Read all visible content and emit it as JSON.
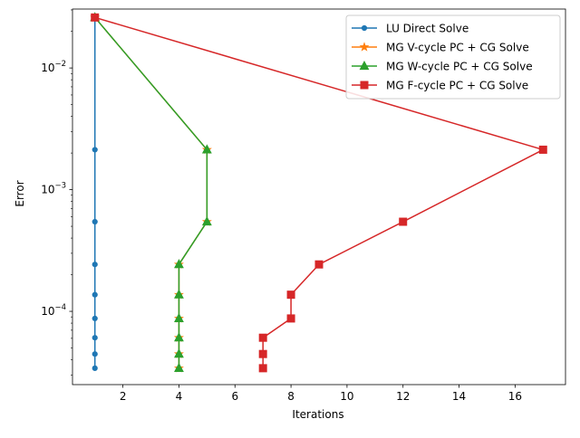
{
  "chart_data": {
    "type": "line",
    "xlabel": "Iterations",
    "ylabel": "Error",
    "xlim": [
      0.2,
      17.8
    ],
    "ylim": [
      2.5e-05,
      0.0305
    ],
    "yscale": "log",
    "grid": false,
    "legend_position": "top-right",
    "x_ticks": [
      2,
      4,
      6,
      8,
      10,
      12,
      14,
      16
    ],
    "x_tick_labels": [
      "2",
      "4",
      "6",
      "8",
      "10",
      "12",
      "14",
      "16"
    ],
    "y_ticks": [
      0.0001,
      0.001,
      0.01
    ],
    "y_tick_labels": [
      "10−4",
      "10−3",
      "10−2"
    ],
    "y_minor_ticks": [
      3e-05,
      4e-05,
      5e-05,
      6e-05,
      7e-05,
      8e-05,
      9e-05,
      0.0002,
      0.0003,
      0.0004,
      0.0005,
      0.0006,
      0.0007,
      0.0008,
      0.0009,
      0.002,
      0.003,
      0.004,
      0.005,
      0.006,
      0.007,
      0.008,
      0.009,
      0.02,
      0.03
    ],
    "series": [
      {
        "name": "LU Direct Solve",
        "color": "#1f77b4",
        "marker": "point",
        "x": [
          1,
          1,
          1,
          1,
          1,
          1,
          1,
          1,
          1
        ],
        "y": [
          0.026,
          0.00213,
          0.000545,
          0.000243,
          0.000137,
          8.74e-05,
          6.07e-05,
          4.46e-05,
          3.41e-05
        ]
      },
      {
        "name": "MG V-cycle PC + CG Solve",
        "color": "#ff7f0e",
        "marker": "star",
        "x": [
          1,
          5,
          5,
          4,
          4,
          4,
          4,
          4,
          4
        ],
        "y": [
          0.026,
          0.00213,
          0.000545,
          0.000243,
          0.000137,
          8.74e-05,
          6.07e-05,
          4.46e-05,
          3.41e-05
        ]
      },
      {
        "name": "MG W-cycle PC + CG Solve",
        "color": "#2ca02c",
        "marker": "triangle",
        "x": [
          1,
          5,
          5,
          4,
          4,
          4,
          4,
          4,
          4
        ],
        "y": [
          0.026,
          0.00213,
          0.000545,
          0.000243,
          0.000137,
          8.74e-05,
          6.07e-05,
          4.46e-05,
          3.41e-05
        ]
      },
      {
        "name": "MG F-cycle PC + CG Solve",
        "color": "#d62728",
        "marker": "square",
        "x": [
          1,
          17,
          12,
          9,
          8,
          8,
          7,
          7,
          7
        ],
        "y": [
          0.026,
          0.00213,
          0.000545,
          0.000243,
          0.000137,
          8.74e-05,
          6.07e-05,
          4.46e-05,
          3.41e-05
        ]
      }
    ]
  }
}
